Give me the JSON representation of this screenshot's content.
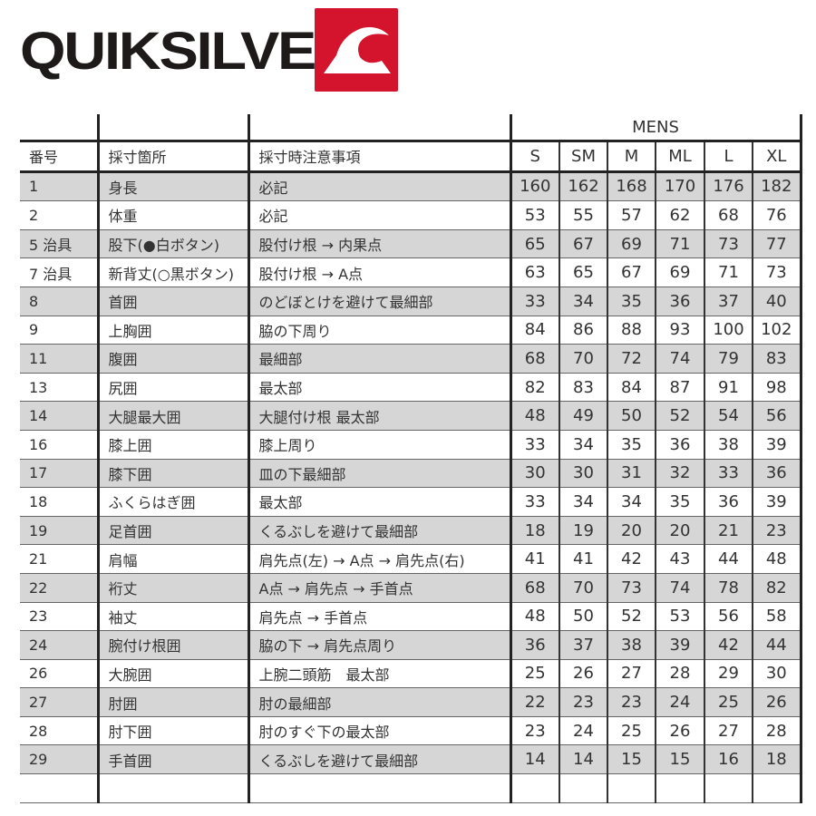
{
  "brand": {
    "name": "QUIKSILVER",
    "logo_color": "#d4142c"
  },
  "table": {
    "group_header": "MENS",
    "headers": [
      "番号",
      "採寸箇所",
      "採寸時注意事項"
    ],
    "sizes": [
      "S",
      "SM",
      "M",
      "ML",
      "L",
      "XL"
    ],
    "rows": [
      {
        "no": "1",
        "part": "身長",
        "note": "必記",
        "values": [
          "160",
          "162",
          "168",
          "170",
          "176",
          "182"
        ]
      },
      {
        "no": "2",
        "part": "体重",
        "note": "必記",
        "values": [
          "53",
          "55",
          "57",
          "62",
          "68",
          "76"
        ]
      },
      {
        "no": "5 治具",
        "part": "股下(●白ボタン)",
        "note": "股付け根 → 内果点",
        "values": [
          "65",
          "67",
          "69",
          "71",
          "73",
          "77"
        ]
      },
      {
        "no": "7 治具",
        "part": "新背丈(○黒ボタン)",
        "note": "股付け根 → A点",
        "values": [
          "63",
          "65",
          "67",
          "69",
          "71",
          "73"
        ]
      },
      {
        "no": "8",
        "part": "首囲",
        "note": "のどぼとけを避けて最細部",
        "values": [
          "33",
          "34",
          "35",
          "36",
          "37",
          "40"
        ]
      },
      {
        "no": "9",
        "part": "上胸囲",
        "note": "脇の下周り",
        "values": [
          "84",
          "86",
          "88",
          "93",
          "100",
          "102"
        ]
      },
      {
        "no": "11",
        "part": "腹囲",
        "note": "最細部",
        "values": [
          "68",
          "70",
          "72",
          "74",
          "79",
          "83"
        ]
      },
      {
        "no": "13",
        "part": "尻囲",
        "note": "最太部",
        "values": [
          "82",
          "83",
          "84",
          "87",
          "91",
          "98"
        ]
      },
      {
        "no": "14",
        "part": "大腿最大囲",
        "note": "大腿付け根 最太部",
        "values": [
          "48",
          "49",
          "50",
          "52",
          "54",
          "56"
        ]
      },
      {
        "no": "16",
        "part": "膝上囲",
        "note": "膝上周り",
        "values": [
          "33",
          "34",
          "35",
          "36",
          "38",
          "39"
        ]
      },
      {
        "no": "17",
        "part": "膝下囲",
        "note": "皿の下最細部",
        "values": [
          "30",
          "30",
          "31",
          "32",
          "33",
          "36"
        ]
      },
      {
        "no": "18",
        "part": "ふくらはぎ囲",
        "note": "最太部",
        "values": [
          "33",
          "34",
          "34",
          "35",
          "36",
          "39"
        ]
      },
      {
        "no": "19",
        "part": "足首囲",
        "note": "くるぶしを避けて最細部",
        "values": [
          "18",
          "19",
          "20",
          "20",
          "21",
          "23"
        ]
      },
      {
        "no": "21",
        "part": "肩幅",
        "note": "肩先点(左) → A点 → 肩先点(右)",
        "values": [
          "41",
          "41",
          "42",
          "43",
          "44",
          "48"
        ]
      },
      {
        "no": "22",
        "part": "裄丈",
        "note": "A点 → 肩先点 → 手首点",
        "values": [
          "68",
          "70",
          "73",
          "74",
          "78",
          "82"
        ]
      },
      {
        "no": "23",
        "part": "袖丈",
        "note": "肩先点 → 手首点",
        "values": [
          "48",
          "50",
          "52",
          "53",
          "56",
          "58"
        ]
      },
      {
        "no": "24",
        "part": "腕付け根囲",
        "note": "脇の下 → 肩先点周り",
        "values": [
          "36",
          "37",
          "38",
          "39",
          "42",
          "44"
        ]
      },
      {
        "no": "26",
        "part": "大腕囲",
        "note": "上腕二頭筋　最太部",
        "values": [
          "25",
          "26",
          "27",
          "28",
          "29",
          "30"
        ]
      },
      {
        "no": "27",
        "part": "肘囲",
        "note": "肘の最細部",
        "values": [
          "22",
          "23",
          "23",
          "24",
          "25",
          "26"
        ]
      },
      {
        "no": "28",
        "part": "肘下囲",
        "note": "肘のすぐ下の最太部",
        "values": [
          "23",
          "24",
          "25",
          "26",
          "27",
          "28"
        ]
      },
      {
        "no": "29",
        "part": "手首囲",
        "note": "くるぶしを避けて最細部",
        "values": [
          "14",
          "14",
          "15",
          "15",
          "16",
          "18"
        ]
      }
    ]
  }
}
